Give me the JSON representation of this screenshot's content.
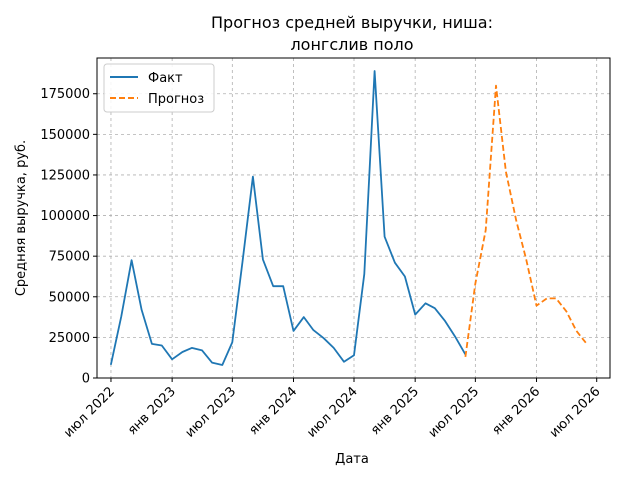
{
  "chart_data": {
    "type": "line",
    "title_lines": [
      "Прогноз средней выручки, ниша:",
      "лонгслив поло"
    ],
    "xlabel": "Дата",
    "ylabel": "Средняя выручка, руб.",
    "ylim": [
      0,
      197000
    ],
    "xlim": [
      "2022-05-20",
      "2026-08-10"
    ],
    "y_ticks": [
      0,
      25000,
      50000,
      75000,
      100000,
      125000,
      150000,
      175000
    ],
    "x_ticks": [
      {
        "date": "2022-07-01",
        "label": "июл 2022"
      },
      {
        "date": "2023-01-01",
        "label": "янв 2023"
      },
      {
        "date": "2023-07-01",
        "label": "июл 2023"
      },
      {
        "date": "2024-01-01",
        "label": "янв 2024"
      },
      {
        "date": "2024-07-01",
        "label": "июл 2024"
      },
      {
        "date": "2025-01-01",
        "label": "янв 2025"
      },
      {
        "date": "2025-07-01",
        "label": "июл 2025"
      },
      {
        "date": "2026-01-01",
        "label": "янв 2026"
      },
      {
        "date": "2026-07-01",
        "label": "июл 2026"
      }
    ],
    "grid": true,
    "legend_position": "top-left",
    "series": [
      {
        "name": "Факт",
        "color": "#1f77b4",
        "style": "solid",
        "points": [
          [
            "2022-07-01",
            8500
          ],
          [
            "2022-08-01",
            38000
          ],
          [
            "2022-09-01",
            72500
          ],
          [
            "2022-10-01",
            42000
          ],
          [
            "2022-11-01",
            21000
          ],
          [
            "2022-12-01",
            20000
          ],
          [
            "2023-01-01",
            11500
          ],
          [
            "2023-02-01",
            16000
          ],
          [
            "2023-03-01",
            18500
          ],
          [
            "2023-04-01",
            17000
          ],
          [
            "2023-05-01",
            9500
          ],
          [
            "2023-06-01",
            8000
          ],
          [
            "2023-07-01",
            22000
          ],
          [
            "2023-08-01",
            72000
          ],
          [
            "2023-09-01",
            124000
          ],
          [
            "2023-10-01",
            73000
          ],
          [
            "2023-11-01",
            56500
          ],
          [
            "2023-12-01",
            56500
          ],
          [
            "2024-01-01",
            29000
          ],
          [
            "2024-02-01",
            37500
          ],
          [
            "2024-03-01",
            29500
          ],
          [
            "2024-04-01",
            24500
          ],
          [
            "2024-05-01",
            18500
          ],
          [
            "2024-06-01",
            10000
          ],
          [
            "2024-07-01",
            14000
          ],
          [
            "2024-08-01",
            64000
          ],
          [
            "2024-09-01",
            189000
          ],
          [
            "2024-10-01",
            87000
          ],
          [
            "2024-11-01",
            71000
          ],
          [
            "2024-12-01",
            62500
          ],
          [
            "2025-01-01",
            39000
          ],
          [
            "2025-02-01",
            46000
          ],
          [
            "2025-03-01",
            43000
          ],
          [
            "2025-04-01",
            35000
          ],
          [
            "2025-05-01",
            25500
          ],
          [
            "2025-06-01",
            14500
          ]
        ]
      },
      {
        "name": "Прогноз",
        "color": "#ff7f0e",
        "style": "dashed",
        "points": [
          [
            "2025-06-01",
            13000
          ],
          [
            "2025-07-01",
            58000
          ],
          [
            "2025-08-01",
            91000
          ],
          [
            "2025-09-01",
            180000
          ],
          [
            "2025-10-01",
            127000
          ],
          [
            "2025-11-01",
            97000
          ],
          [
            "2025-12-01",
            73000
          ],
          [
            "2026-01-01",
            44500
          ],
          [
            "2026-02-01",
            49000
          ],
          [
            "2026-03-01",
            49000
          ],
          [
            "2026-04-01",
            41000
          ],
          [
            "2026-05-01",
            29000
          ],
          [
            "2026-06-01",
            21000
          ]
        ]
      }
    ]
  }
}
